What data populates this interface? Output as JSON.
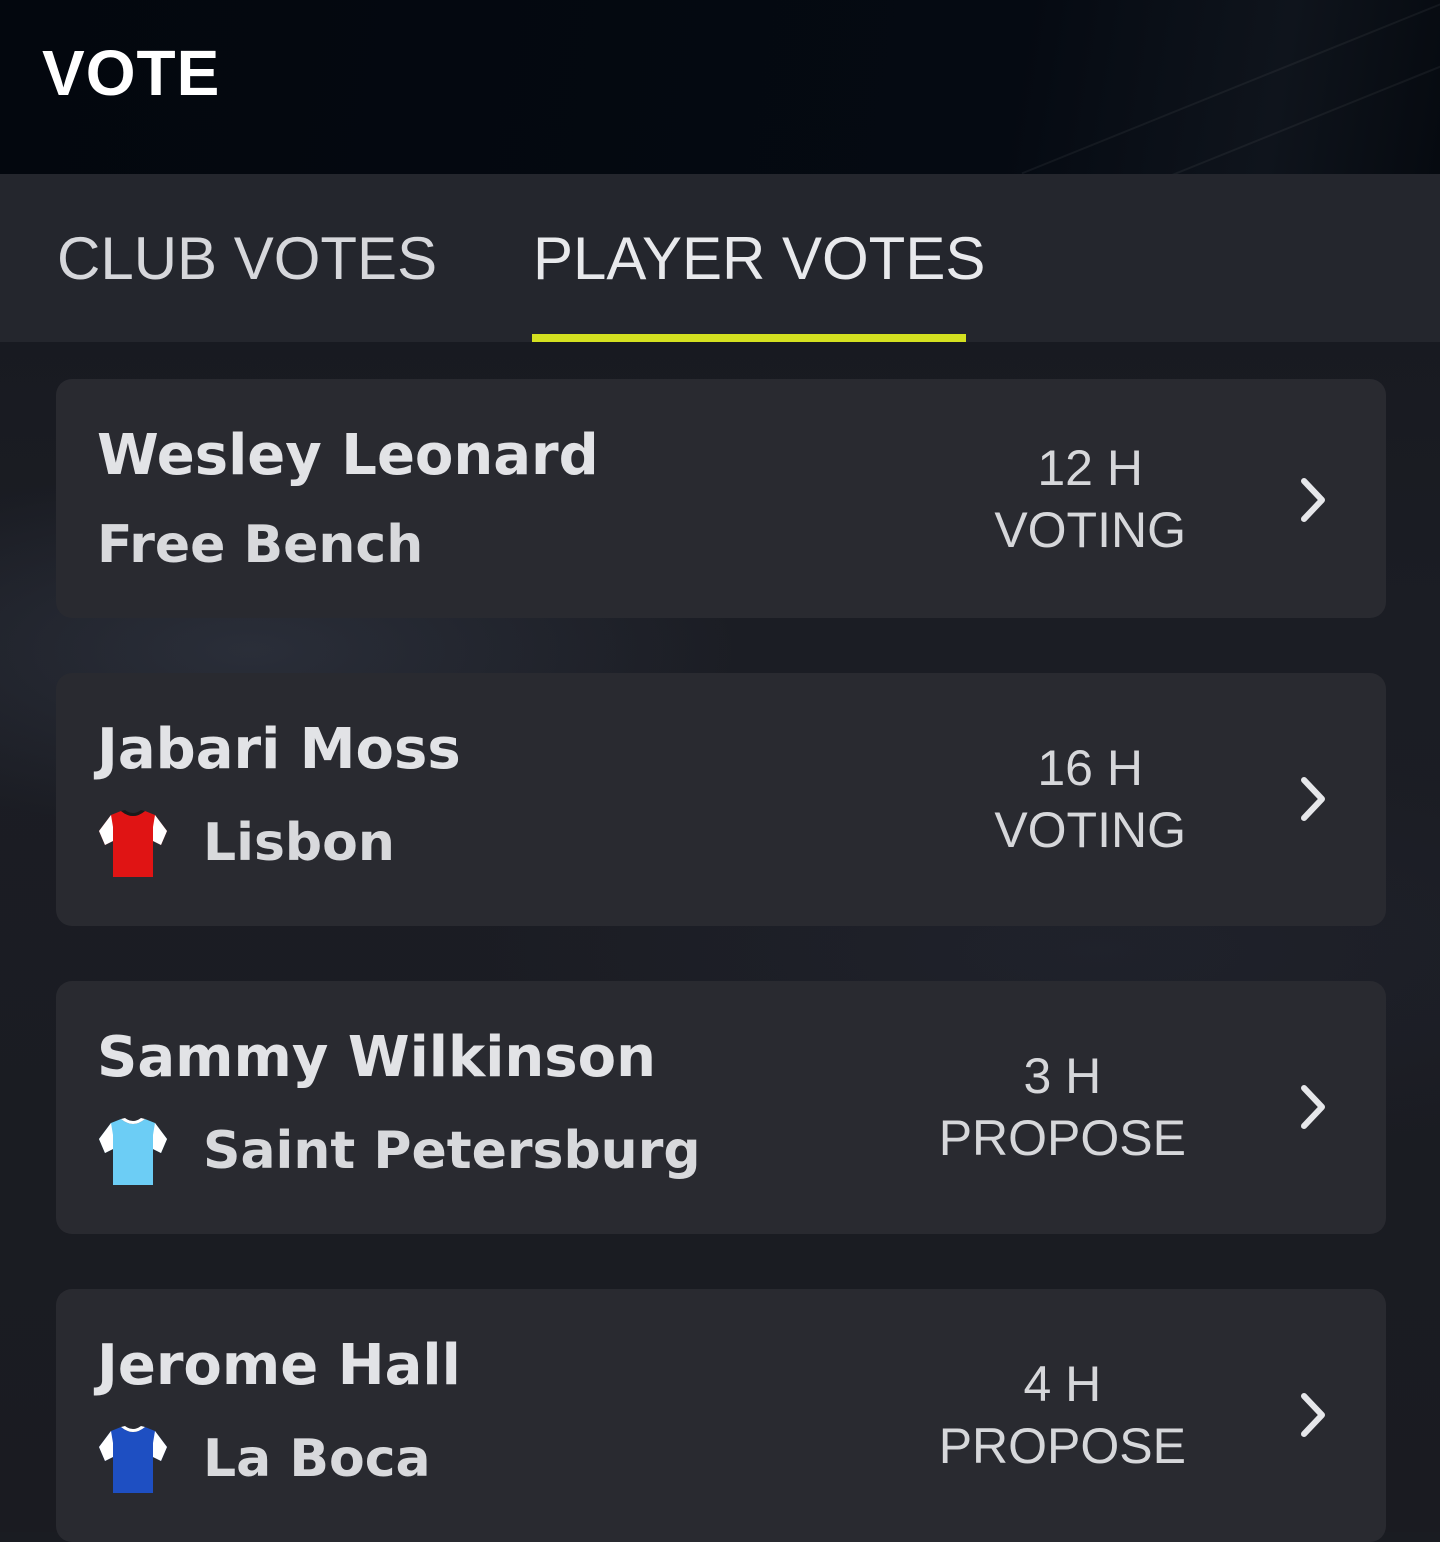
{
  "header": {
    "title": "VOTE"
  },
  "tabs": [
    {
      "label": "CLUB VOTES",
      "active": false
    },
    {
      "label": "PLAYER VOTES",
      "active": true
    }
  ],
  "colors": {
    "accent": "#d4e020",
    "card": "#292a30",
    "tab_bar": "#24262d"
  },
  "votes": [
    {
      "player": "Wesley Leonard",
      "club": "Free Bench",
      "time": "12 H",
      "status": "VOTING",
      "kit": null
    },
    {
      "player": "Jabari Moss",
      "club": "Lisbon",
      "time": "16 H",
      "status": "VOTING",
      "kit": {
        "icon": "shirt-icon",
        "body": "#e01414",
        "sleeve": "#ffffff"
      }
    },
    {
      "player": "Sammy Wilkinson",
      "club": "Saint Petersburg",
      "time": "3 H",
      "status": "PROPOSE",
      "kit": {
        "icon": "shirt-icon",
        "body": "#6ccdf5",
        "sleeve": "#ffffff"
      }
    },
    {
      "player": "Jerome Hall",
      "club": "La Boca",
      "time": "4 H",
      "status": "PROPOSE",
      "kit": {
        "icon": "shirt-icon",
        "body": "#1e4fc2",
        "sleeve": "#ffffff"
      }
    }
  ]
}
